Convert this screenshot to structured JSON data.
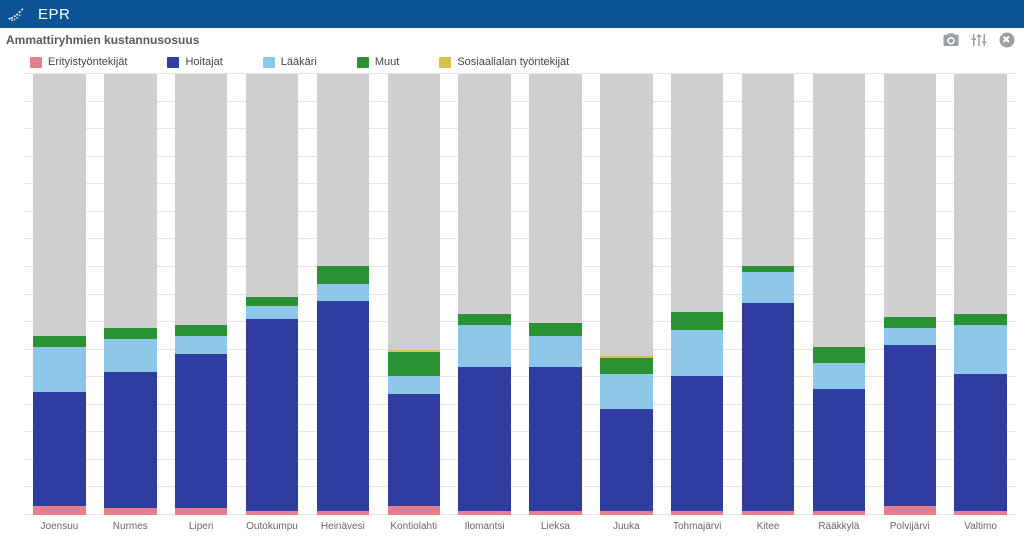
{
  "topbar": {
    "title": "EPR"
  },
  "widget": {
    "title": "Ammattiryhmien kustannusosuus",
    "y_label": "Ammattiryhmien kustannusosuus"
  },
  "chart": {
    "type": "bar-stacked",
    "ylim": [
      0,
      100
    ],
    "ytick_step": 6.25,
    "grid_color": "#e6e6e6",
    "background_color": "#ffffff",
    "bar_width": 0.74,
    "series": [
      {
        "key": "erityistyontekijat",
        "label": "Erityistyöntekijät",
        "color": "#e57f8f"
      },
      {
        "key": "hoitajat",
        "label": "Hoitajat",
        "color": "#2f3da0"
      },
      {
        "key": "laakari",
        "label": "Lääkäri",
        "color": "#8dc8ea"
      },
      {
        "key": "muut",
        "label": "Muut",
        "color": "#2a9134"
      },
      {
        "key": "sosiaalialan",
        "label": "Sosiaalialan työntekijät",
        "color": "#d4c24a"
      },
      {
        "key": "filler",
        "label": null,
        "color": "#cfcfcf"
      }
    ],
    "categories": [
      "Joensuu",
      "Nurmes",
      "Liperi",
      "Outokumpu",
      "Heinävesi",
      "Kontiolahti",
      "Ilomantsi",
      "Lieksa",
      "Juuka",
      "Tohmajärvi",
      "Kitee",
      "Rääkkylä",
      "Polvijärvi",
      "Valtimo"
    ],
    "data": [
      {
        "erityistyontekijat": 2.0,
        "hoitajat": 26.0,
        "laakari": 10.0,
        "muut": 2.5,
        "sosiaalialan": 0.0
      },
      {
        "erityistyontekijat": 1.5,
        "hoitajat": 31.0,
        "laakari": 7.5,
        "muut": 2.5,
        "sosiaalialan": 0.0
      },
      {
        "erityistyontekijat": 1.5,
        "hoitajat": 35.0,
        "laakari": 4.0,
        "muut": 2.5,
        "sosiaalialan": 0.0
      },
      {
        "erityistyontekijat": 1.0,
        "hoitajat": 43.5,
        "laakari": 3.0,
        "muut": 2.0,
        "sosiaalialan": 0.0
      },
      {
        "erityistyontekijat": 1.0,
        "hoitajat": 47.5,
        "laakari": 4.0,
        "muut": 4.0,
        "sosiaalialan": 0.0
      },
      {
        "erityistyontekijat": 2.0,
        "hoitajat": 25.5,
        "laakari": 4.0,
        "muut": 5.5,
        "sosiaalialan": 0.5
      },
      {
        "erityistyontekijat": 1.0,
        "hoitajat": 32.5,
        "laakari": 9.5,
        "muut": 2.5,
        "sosiaalialan": 0.0
      },
      {
        "erityistyontekijat": 1.0,
        "hoitajat": 32.5,
        "laakari": 7.0,
        "muut": 3.0,
        "sosiaalialan": 0.0
      },
      {
        "erityistyontekijat": 1.0,
        "hoitajat": 23.0,
        "laakari": 8.0,
        "muut": 3.5,
        "sosiaalialan": 0.5
      },
      {
        "erityistyontekijat": 1.0,
        "hoitajat": 30.5,
        "laakari": 10.5,
        "muut": 4.0,
        "sosiaalialan": 0.0
      },
      {
        "erityistyontekijat": 1.0,
        "hoitajat": 47.0,
        "laakari": 7.0,
        "muut": 1.5,
        "sosiaalialan": 0.0
      },
      {
        "erityistyontekijat": 1.0,
        "hoitajat": 27.5,
        "laakari": 6.0,
        "muut": 3.5,
        "sosiaalialan": 0.0
      },
      {
        "erityistyontekijat": 2.0,
        "hoitajat": 36.5,
        "laakari": 4.0,
        "muut": 2.5,
        "sosiaalialan": 0.0
      },
      {
        "erityistyontekijat": 1.0,
        "hoitajat": 31.0,
        "laakari": 11.0,
        "muut": 2.5,
        "sosiaalialan": 0.0
      }
    ]
  }
}
